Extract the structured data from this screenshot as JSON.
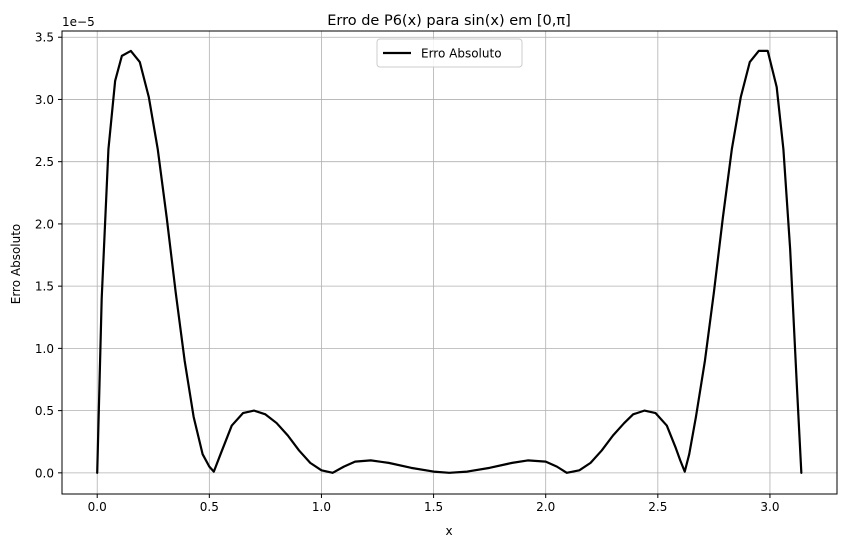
{
  "chart_data": {
    "type": "line",
    "title": "Erro de P6(x) para sin(x) em [0,π]",
    "xlabel": "x",
    "ylabel": "Erro Absoluto",
    "y_scale_label": "1e−5",
    "y_scale_factor": 1e-05,
    "xlim": [
      -0.157,
      3.299
    ],
    "ylim": [
      -0.17,
      3.55
    ],
    "x_ticks": [
      0.0,
      0.5,
      1.0,
      1.5,
      2.0,
      2.5,
      3.0
    ],
    "x_tick_labels": [
      "0.0",
      "0.5",
      "1.0",
      "1.5",
      "2.0",
      "2.5",
      "3.0"
    ],
    "y_ticks": [
      0.0,
      0.5,
      1.0,
      1.5,
      2.0,
      2.5,
      3.0,
      3.5
    ],
    "y_tick_labels": [
      "0.0",
      "0.5",
      "1.0",
      "1.5",
      "2.0",
      "2.5",
      "3.0",
      "3.5"
    ],
    "grid": true,
    "legend_position": "top-center",
    "series": [
      {
        "name": "Erro Absoluto",
        "color": "#000000",
        "x": [
          0.0,
          0.02,
          0.05,
          0.08,
          0.11,
          0.15,
          0.19,
          0.23,
          0.27,
          0.31,
          0.35,
          0.39,
          0.43,
          0.47,
          0.5,
          0.52,
          0.55,
          0.6,
          0.65,
          0.7,
          0.75,
          0.8,
          0.85,
          0.9,
          0.95,
          1.0,
          1.05,
          1.1,
          1.15,
          1.22,
          1.3,
          1.4,
          1.5,
          1.57,
          1.65,
          1.75,
          1.85,
          1.92,
          2.0,
          2.05,
          2.094,
          2.15,
          2.2,
          2.25,
          2.3,
          2.35,
          2.39,
          2.44,
          2.49,
          2.54,
          2.58,
          2.6,
          2.62,
          2.64,
          2.67,
          2.71,
          2.75,
          2.79,
          2.83,
          2.87,
          2.91,
          2.95,
          2.99,
          3.03,
          3.06,
          3.09,
          3.12,
          3.14
        ],
        "y": [
          0.0,
          1.4,
          2.6,
          3.15,
          3.35,
          3.39,
          3.3,
          3.02,
          2.6,
          2.05,
          1.45,
          0.9,
          0.45,
          0.15,
          0.05,
          0.01,
          0.15,
          0.38,
          0.48,
          0.5,
          0.47,
          0.4,
          0.3,
          0.18,
          0.08,
          0.02,
          0.0,
          0.05,
          0.09,
          0.1,
          0.08,
          0.04,
          0.01,
          0.0,
          0.01,
          0.04,
          0.08,
          0.1,
          0.09,
          0.05,
          0.0,
          0.02,
          0.08,
          0.18,
          0.3,
          0.4,
          0.47,
          0.5,
          0.48,
          0.38,
          0.2,
          0.1,
          0.01,
          0.15,
          0.45,
          0.9,
          1.45,
          2.05,
          2.6,
          3.02,
          3.3,
          3.39,
          3.39,
          3.1,
          2.6,
          1.8,
          0.7,
          0.0
        ]
      }
    ]
  }
}
